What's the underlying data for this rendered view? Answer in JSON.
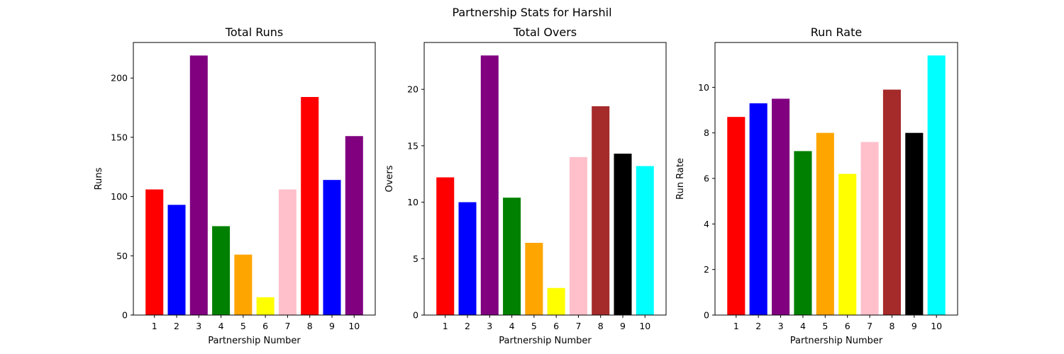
{
  "figure": {
    "suptitle": "Partnership Stats for Harshil"
  },
  "chart_data": [
    {
      "type": "bar",
      "title": "Total Runs",
      "xlabel": "Partnership Number",
      "ylabel": "Runs",
      "categories": [
        "1",
        "2",
        "3",
        "4",
        "5",
        "6",
        "7",
        "8",
        "9",
        "10"
      ],
      "values": [
        106,
        93,
        219,
        75,
        51,
        15,
        106,
        184,
        114,
        151
      ],
      "colors": [
        "#ff0000",
        "#0000ff",
        "#800080",
        "#008000",
        "#ffa500",
        "#ffff00",
        "#ffc0cb",
        "#ff0000",
        "#0000ff",
        "#800080"
      ],
      "ylim": [
        0,
        230
      ],
      "yticks": [
        0,
        50,
        100,
        150,
        200
      ],
      "grid": false
    },
    {
      "type": "bar",
      "title": "Total Overs",
      "xlabel": "Partnership Number",
      "ylabel": "Overs",
      "categories": [
        "1",
        "2",
        "3",
        "4",
        "5",
        "6",
        "7",
        "8",
        "9",
        "10"
      ],
      "values": [
        12.2,
        10.0,
        23.0,
        10.4,
        6.4,
        2.4,
        14.0,
        18.5,
        14.3,
        13.2
      ],
      "colors": [
        "#ff0000",
        "#0000ff",
        "#800080",
        "#008000",
        "#ffa500",
        "#ffff00",
        "#ffc0cb",
        "#a52a2a",
        "#000000",
        "#00ffff"
      ],
      "ylim": [
        0,
        24.15
      ],
      "yticks": [
        0,
        5,
        10,
        15,
        20
      ],
      "grid": false
    },
    {
      "type": "bar",
      "title": "Run Rate",
      "xlabel": "Partnership Number",
      "ylabel": "Run Rate",
      "categories": [
        "1",
        "2",
        "3",
        "4",
        "5",
        "6",
        "7",
        "8",
        "9",
        "10"
      ],
      "values": [
        8.7,
        9.3,
        9.5,
        7.2,
        8.0,
        6.2,
        7.6,
        9.9,
        8.0,
        11.4
      ],
      "colors": [
        "#ff0000",
        "#0000ff",
        "#800080",
        "#008000",
        "#ffa500",
        "#ffff00",
        "#ffc0cb",
        "#a52a2a",
        "#000000",
        "#00ffff"
      ],
      "ylim": [
        0,
        11.97
      ],
      "yticks": [
        0,
        2,
        4,
        6,
        8,
        10
      ],
      "grid": false
    }
  ]
}
